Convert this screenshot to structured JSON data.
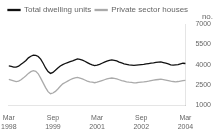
{
  "chart_data": {
    "type": "line",
    "ylabel": "no.",
    "categories": [
      "Mar\n1998",
      null,
      null,
      null,
      null,
      null,
      null,
      null,
      null,
      null,
      null,
      null,
      null,
      null,
      null,
      null,
      null,
      null,
      "Sep\n1999",
      null,
      null,
      null,
      null,
      null,
      null,
      null,
      null,
      null,
      null,
      null,
      null,
      null,
      null,
      null,
      null,
      null,
      "Mar\n2001",
      null,
      null,
      null,
      null,
      null,
      null,
      null,
      null,
      null,
      null,
      null,
      null,
      null,
      null,
      null,
      null,
      null,
      "Sep\n2002",
      null,
      null,
      null,
      null,
      null,
      null,
      null,
      null,
      null,
      null,
      null,
      null,
      null,
      null,
      null,
      null,
      null,
      "Mar\n2004"
    ],
    "series": [
      {
        "name": "Total dwelling units",
        "color": "#111111",
        "values": [
          3900,
          3870,
          3820,
          3820,
          3880,
          4020,
          4150,
          4300,
          4500,
          4620,
          4700,
          4680,
          4600,
          4400,
          4100,
          3750,
          3480,
          3350,
          3420,
          3580,
          3750,
          3900,
          4000,
          4080,
          4150,
          4220,
          4280,
          4350,
          4420,
          4380,
          4330,
          4250,
          4150,
          4050,
          3980,
          3920,
          3960,
          4020,
          4100,
          4180,
          4250,
          4320,
          4350,
          4320,
          4270,
          4180,
          4120,
          4060,
          4020,
          3980,
          3960,
          3940,
          3960,
          3980,
          4000,
          4020,
          4050,
          4080,
          4110,
          4130,
          4160,
          4180,
          4200,
          4150,
          4100,
          4050,
          3980,
          3960,
          3980,
          4000,
          4050,
          4100,
          4080
        ]
      },
      {
        "name": "Private sector houses",
        "color": "#aaaaaa",
        "values": [
          2900,
          2850,
          2800,
          2750,
          2780,
          2880,
          3020,
          3180,
          3350,
          3480,
          3550,
          3500,
          3320,
          3000,
          2650,
          2300,
          2000,
          1850,
          1900,
          2020,
          2200,
          2400,
          2580,
          2680,
          2780,
          2880,
          2960,
          3020,
          3050,
          3000,
          2940,
          2860,
          2780,
          2720,
          2700,
          2660,
          2700,
          2760,
          2820,
          2880,
          2940,
          2980,
          3010,
          2980,
          2940,
          2880,
          2820,
          2780,
          2730,
          2700,
          2680,
          2650,
          2660,
          2680,
          2700,
          2720,
          2750,
          2780,
          2820,
          2860,
          2880,
          2900,
          2920,
          2890,
          2860,
          2820,
          2780,
          2750,
          2730,
          2750,
          2780,
          2810,
          2830
        ]
      }
    ],
    "ylim": [
      1000,
      7000
    ],
    "yticks": [
      1000,
      2500,
      4000,
      5500,
      7000
    ],
    "grid": false,
    "legend": "upper left"
  }
}
